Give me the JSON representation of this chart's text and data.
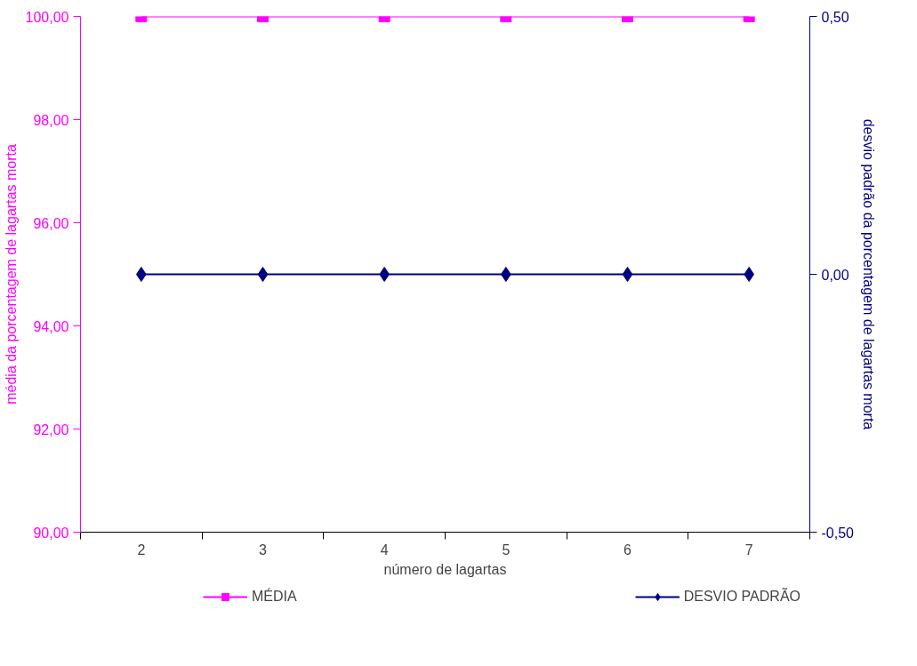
{
  "chart_data": {
    "type": "line",
    "xlabel": "número de lagartas",
    "ylabel": "média da porcentagem de lagartas morta",
    "y2label": "desvio padrão da porcentagem de lagartas morta",
    "categories": [
      "2",
      "3",
      "4",
      "5",
      "6",
      "7"
    ],
    "series": [
      {
        "name": "MÉDIA",
        "color": "#ff00ff",
        "marker": "square",
        "values": [
          100,
          100,
          100,
          100,
          100,
          100
        ]
      },
      {
        "name": "DESVIO PADRÃO",
        "color": "#000080",
        "marker": "diamond",
        "axis": "y2",
        "values": [
          0,
          0,
          0,
          0,
          0,
          0
        ]
      }
    ],
    "ylim": [
      90,
      100
    ],
    "yticks": [
      {
        "value": 90,
        "label": "90,00"
      },
      {
        "value": 92,
        "label": "92,00"
      },
      {
        "value": 94,
        "label": "94,00"
      },
      {
        "value": 96,
        "label": "96,00"
      },
      {
        "value": 98,
        "label": "98,00"
      },
      {
        "value": 100,
        "label": "100,00"
      }
    ],
    "y2lim": [
      -0.5,
      0.5
    ],
    "y2ticks": [
      {
        "value": -0.5,
        "label": "-0,50"
      },
      {
        "value": 0,
        "label": "0,00"
      },
      {
        "value": 0.5,
        "label": "0,50"
      }
    ],
    "grid": false,
    "legend": "bottom",
    "line_style": "solid"
  }
}
